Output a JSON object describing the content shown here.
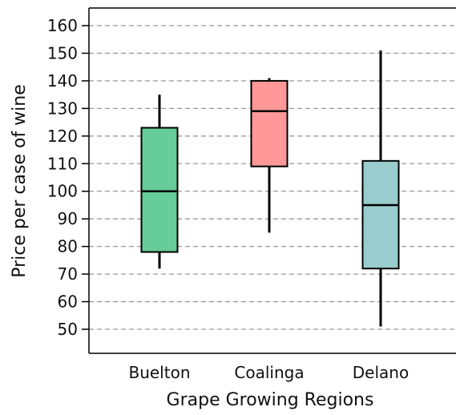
{
  "chart_data": {
    "type": "box",
    "title": "",
    "xlabel": "Grape Growing Regions",
    "ylabel": "Price per case of wine",
    "ylim": [
      40,
      168
    ],
    "yticks": [
      50,
      60,
      70,
      80,
      90,
      100,
      110,
      120,
      130,
      140,
      150,
      160
    ],
    "grid": "horizontal-dashed",
    "categories": [
      "Buelton",
      "Coalinga",
      "Delano"
    ],
    "boxes": [
      {
        "category": "Buelton",
        "whisker_low": 72,
        "q1": 78,
        "median": 100,
        "q3": 123,
        "whisker_high": 135,
        "color": "#66cc99"
      },
      {
        "category": "Coalinga",
        "whisker_low": 85,
        "q1": 109,
        "median": 129,
        "q3": 140,
        "whisker_high": 141,
        "color": "#ff9999"
      },
      {
        "category": "Delano",
        "whisker_low": 51,
        "q1": 72,
        "median": 95,
        "q3": 111,
        "whisker_high": 151,
        "color": "#99cccc"
      }
    ]
  },
  "colors": {
    "axis": "#000000",
    "grid": "#999999",
    "median": "#000000"
  }
}
